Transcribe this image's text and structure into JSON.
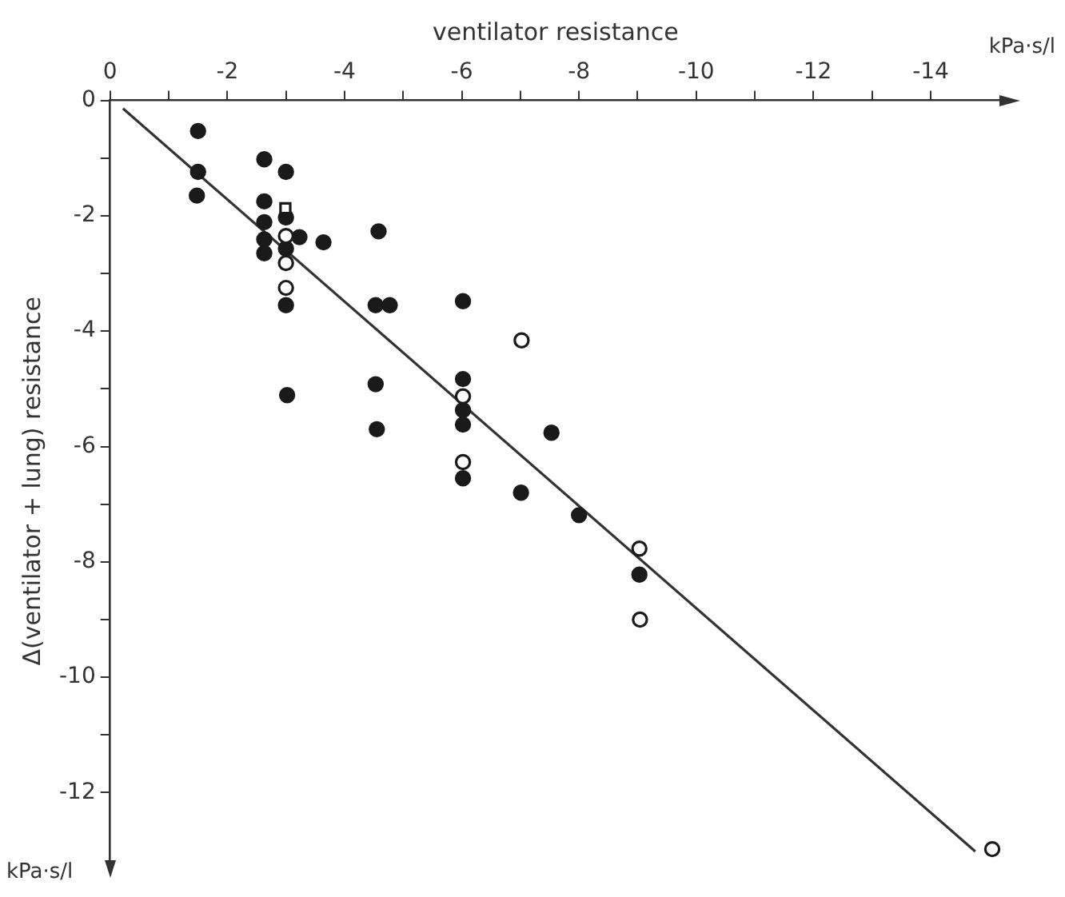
{
  "chart_data": {
    "type": "scatter",
    "xlabel": "ventilator resistance",
    "ylabel": "Δ(ventilator + lung) resistance",
    "annotations": [
      "kPa·s/l",
      "kPa·s/l"
    ],
    "xlim": [
      0,
      -15.2
    ],
    "ylim": [
      -13.2,
      0
    ],
    "xticks": [
      0,
      {
        "value": -1,
        "label": null
      },
      -2,
      {
        "value": -3,
        "label": null
      },
      -4,
      {
        "value": -5,
        "label": null
      },
      -6,
      {
        "value": -7,
        "label": null
      },
      -8,
      {
        "value": -9,
        "label": null
      },
      -10,
      {
        "value": -11,
        "label": null
      },
      -12,
      {
        "value": -13,
        "label": null
      },
      -14
    ],
    "yticks": [
      0,
      {
        "value": -1,
        "label": null
      },
      -2,
      {
        "value": -3,
        "label": null
      },
      -4,
      {
        "value": -5,
        "label": null
      },
      -6,
      {
        "value": -7,
        "label": null
      },
      -8,
      {
        "value": -9,
        "label": null
      },
      -10,
      {
        "value": -11,
        "label": null
      },
      -12
    ],
    "grid": false,
    "legend": false,
    "marker": "circle",
    "series": [
      {
        "color": "#1a1a1a",
        "x": [
          -1.5,
          -1.5,
          -1.48,
          -2.63,
          -3.0,
          -2.63,
          -3.0,
          -2.63,
          -2.63,
          -2.63,
          -3.0,
          -3.23,
          -3.64,
          -4.58,
          -4.53,
          -4.77,
          -3.0,
          -3.02,
          -4.53,
          -4.55,
          -6.02,
          -6.02,
          -6.02,
          -6.02,
          -6.02,
          -7.53,
          -7.01,
          -8.0,
          -9.03
        ],
        "values": [
          -0.53,
          -1.24,
          -1.65,
          -1.02,
          -1.24,
          -1.75,
          -2.03,
          -2.11,
          -2.41,
          -2.65,
          -2.57,
          -2.37,
          -2.46,
          -2.27,
          -3.55,
          -3.55,
          -3.55,
          -5.11,
          -4.92,
          -5.7,
          -3.48,
          -4.83,
          -5.37,
          -5.62,
          -6.55,
          -5.76,
          -6.8,
          -7.19,
          -8.22
        ]
      },
      {
        "color": "#ffffff",
        "x": [
          -3.0,
          -3.0,
          -3.0,
          -6.02,
          -6.02,
          -7.02,
          -9.03,
          -9.04,
          -15.05
        ],
        "values": [
          -2.35,
          -2.82,
          -3.25,
          -5.13,
          -6.27,
          -4.16,
          -7.77,
          -9.0,
          -12.98
        ]
      },
      {
        "color": "#ffffff",
        "marker": "square",
        "x": [
          -2.99
        ],
        "values": [
          -1.87
        ]
      },
      {
        "type": "line",
        "color": "#333333",
        "marker": "none",
        "x": [
          -0.22,
          -14.76
        ],
        "values": [
          -0.14,
          -13.02
        ]
      }
    ]
  }
}
